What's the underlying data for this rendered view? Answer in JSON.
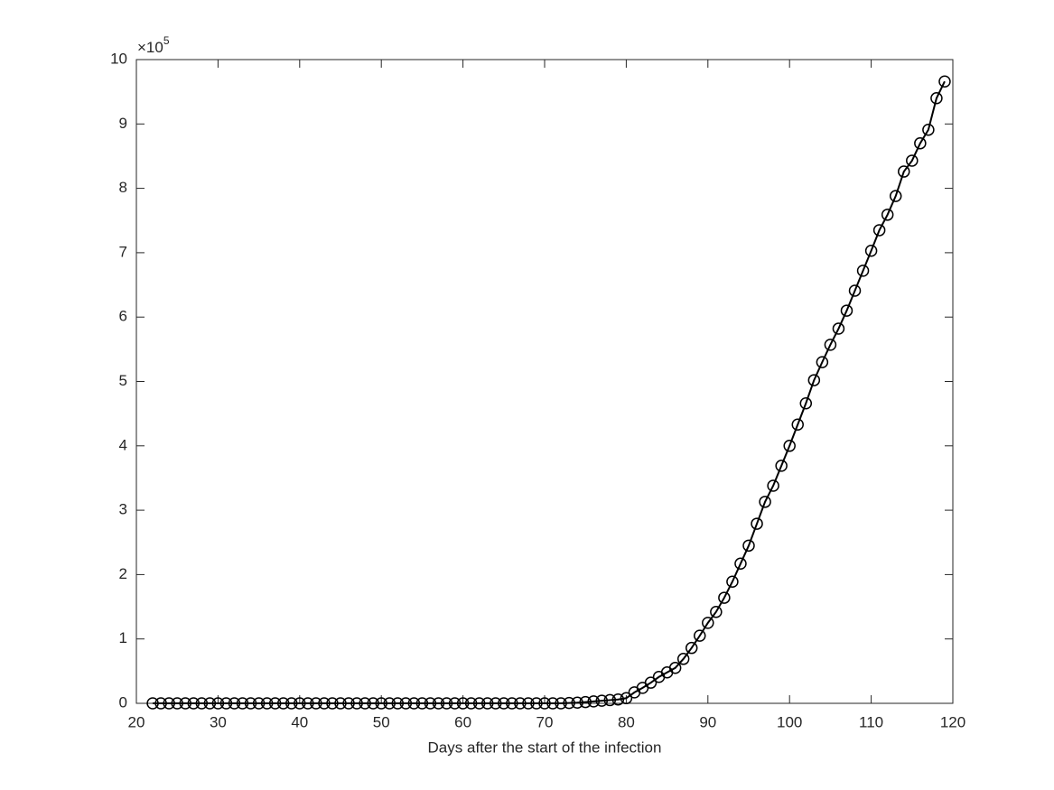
{
  "chart_data": {
    "type": "line",
    "x_label": "Days after the start of the infection",
    "multiplier": {
      "base": "×10",
      "power": "5"
    },
    "x": [
      22,
      23,
      24,
      25,
      26,
      27,
      28,
      29,
      30,
      31,
      32,
      33,
      34,
      35,
      36,
      37,
      38,
      39,
      40,
      41,
      42,
      43,
      44,
      45,
      46,
      47,
      48,
      49,
      50,
      51,
      52,
      53,
      54,
      55,
      56,
      57,
      58,
      59,
      60,
      61,
      62,
      63,
      64,
      65,
      66,
      67,
      68,
      69,
      70,
      71,
      72,
      73,
      74,
      75,
      76,
      77,
      78,
      79,
      80,
      81,
      82,
      83,
      84,
      85,
      86,
      87,
      88,
      89,
      90,
      91,
      92,
      93,
      94,
      95,
      96,
      97,
      98,
      99,
      100,
      101,
      102,
      103,
      104,
      105,
      106,
      107,
      108,
      109,
      110,
      111,
      112,
      113,
      114,
      115,
      116,
      117,
      118,
      119
    ],
    "series": [
      {
        "color": "#000000",
        "marker": "circle",
        "values": [
          0,
          0,
          0,
          0,
          0,
          0,
          0,
          0,
          0,
          0,
          0,
          0,
          0,
          0,
          0,
          0,
          0,
          0,
          0,
          0,
          0,
          0,
          0,
          0,
          0,
          0,
          0,
          0,
          0,
          0,
          0,
          0,
          0,
          0,
          0,
          0,
          0,
          0,
          0,
          0,
          0,
          0,
          0,
          0,
          0,
          0,
          0,
          0,
          0,
          0,
          0,
          0.005,
          0.01,
          0.02,
          0.03,
          0.04,
          0.05,
          0.06,
          0.08,
          0.17,
          0.24,
          0.32,
          0.41,
          0.48,
          0.55,
          0.69,
          0.86,
          1.05,
          1.25,
          1.42,
          1.64,
          1.89,
          2.17,
          2.45,
          2.79,
          3.13,
          3.38,
          3.69,
          4.0,
          4.33,
          4.66,
          5.02,
          5.3,
          5.57,
          5.82,
          6.1,
          6.41,
          6.72,
          7.03,
          7.35,
          7.59,
          7.88,
          8.26,
          8.43,
          8.7,
          8.91,
          9.4,
          9.66
        ]
      }
    ],
    "xlim": [
      20,
      120
    ],
    "xticks": [
      20,
      30,
      40,
      50,
      60,
      70,
      80,
      90,
      100,
      110,
      120
    ],
    "ylim": [
      0,
      10
    ],
    "yticks": [
      0,
      1,
      2,
      3,
      4,
      5,
      6,
      7,
      8,
      9,
      10
    ],
    "grid": false
  }
}
